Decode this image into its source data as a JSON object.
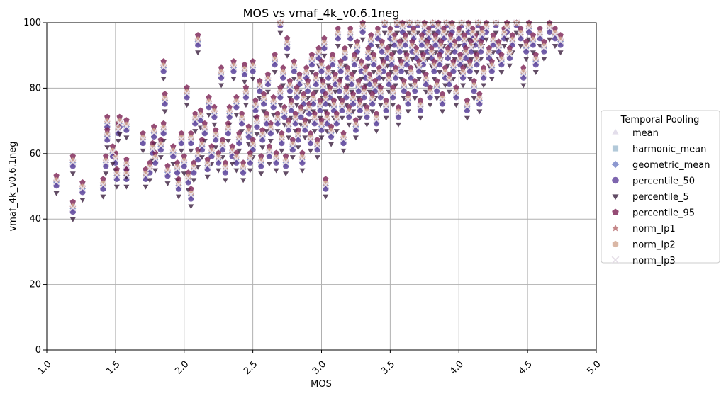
{
  "chart_data": {
    "type": "scatter",
    "title": "MOS vs vmaf_4k_v0.6.1neg",
    "xlabel": "MOS",
    "ylabel": "vmaf_4k_v0.6.1neg",
    "xlim": [
      1.0,
      5.0
    ],
    "ylim": [
      0,
      100
    ],
    "xticks": [
      "1.0",
      "1.5",
      "2.0",
      "2.5",
      "3.0",
      "3.5",
      "4.0",
      "4.5",
      "5.0"
    ],
    "yticks": [
      "0",
      "20",
      "40",
      "60",
      "80",
      "100"
    ],
    "grid": true,
    "legend": {
      "title": "Temporal Pooling",
      "placement": "center-right-outside"
    },
    "series": [
      {
        "name": "mean",
        "marker": "triangle-up",
        "color": "#dcd6e6"
      },
      {
        "name": "harmonic_mean",
        "marker": "square",
        "color": "#9fbcd0"
      },
      {
        "name": "geometric_mean",
        "marker": "diamond",
        "color": "#6f7ec4"
      },
      {
        "name": "percentile_50",
        "marker": "circle",
        "color": "#5c3f9a"
      },
      {
        "name": "percentile_5",
        "marker": "triangle-down",
        "color": "#3b1f3f"
      },
      {
        "name": "percentile_95",
        "marker": "pentagon",
        "color": "#7a1f52"
      },
      {
        "name": "norm_lp1",
        "marker": "star",
        "color": "#b5686a"
      },
      {
        "name": "norm_lp2",
        "marker": "hexagon",
        "color": "#d1a58f"
      },
      {
        "name": "norm_lp3",
        "marker": "x",
        "color": "#e6dfe8"
      }
    ],
    "points": [
      [
        1.07,
        51
      ],
      [
        1.19,
        57
      ],
      [
        1.19,
        43
      ],
      [
        1.26,
        49
      ],
      [
        1.41,
        50
      ],
      [
        1.43,
        57
      ],
      [
        1.44,
        69
      ],
      [
        1.44,
        65
      ],
      [
        1.48,
        60
      ],
      [
        1.5,
        58
      ],
      [
        1.51,
        53
      ],
      [
        1.52,
        67
      ],
      [
        1.53,
        69
      ],
      [
        1.58,
        56
      ],
      [
        1.58,
        53
      ],
      [
        1.58,
        68
      ],
      [
        1.7,
        64
      ],
      [
        1.72,
        53
      ],
      [
        1.75,
        55
      ],
      [
        1.77,
        61
      ],
      [
        1.78,
        66
      ],
      [
        1.79,
        58
      ],
      [
        1.83,
        62
      ],
      [
        1.85,
        67
      ],
      [
        1.85,
        86
      ],
      [
        1.86,
        76
      ],
      [
        1.88,
        54
      ],
      [
        1.92,
        60
      ],
      [
        1.95,
        55
      ],
      [
        1.96,
        50
      ],
      [
        1.98,
        64
      ],
      [
        2.0,
        57
      ],
      [
        2.02,
        78
      ],
      [
        2.03,
        52
      ],
      [
        2.05,
        47
      ],
      [
        2.05,
        64
      ],
      [
        2.07,
        55
      ],
      [
        2.08,
        70
      ],
      [
        2.1,
        94
      ],
      [
        2.1,
        59
      ],
      [
        2.12,
        71
      ],
      [
        2.13,
        62
      ],
      [
        2.15,
        67
      ],
      [
        2.17,
        56
      ],
      [
        2.18,
        75
      ],
      [
        2.2,
        60
      ],
      [
        2.22,
        72
      ],
      [
        2.23,
        65
      ],
      [
        2.25,
        58
      ],
      [
        2.27,
        84
      ],
      [
        2.28,
        62
      ],
      [
        2.3,
        55
      ],
      [
        2.32,
        67
      ],
      [
        2.33,
        72
      ],
      [
        2.35,
        60
      ],
      [
        2.36,
        86
      ],
      [
        2.38,
        75
      ],
      [
        2.38,
        58
      ],
      [
        2.4,
        64
      ],
      [
        2.42,
        70
      ],
      [
        2.43,
        55
      ],
      [
        2.44,
        85
      ],
      [
        2.45,
        78
      ],
      [
        2.47,
        66
      ],
      [
        2.48,
        58
      ],
      [
        2.5,
        86
      ],
      [
        2.5,
        62
      ],
      [
        2.52,
        74
      ],
      [
        2.53,
        69
      ],
      [
        2.55,
        80
      ],
      [
        2.56,
        57
      ],
      [
        2.57,
        65
      ],
      [
        2.58,
        76
      ],
      [
        2.6,
        70
      ],
      [
        2.61,
        82
      ],
      [
        2.62,
        60
      ],
      [
        2.63,
        67
      ],
      [
        2.65,
        75
      ],
      [
        2.66,
        88
      ],
      [
        2.67,
        58
      ],
      [
        2.68,
        70
      ],
      [
        2.7,
        100
      ],
      [
        2.7,
        78
      ],
      [
        2.71,
        64
      ],
      [
        2.72,
        84
      ],
      [
        2.73,
        72
      ],
      [
        2.74,
        57
      ],
      [
        2.75,
        93
      ],
      [
        2.76,
        68
      ],
      [
        2.77,
        80
      ],
      [
        2.78,
        74
      ],
      [
        2.79,
        62
      ],
      [
        2.8,
        86
      ],
      [
        2.81,
        70
      ],
      [
        2.82,
        78
      ],
      [
        2.83,
        65
      ],
      [
        2.84,
        82
      ],
      [
        2.85,
        72
      ],
      [
        2.86,
        58
      ],
      [
        2.87,
        76
      ],
      [
        2.88,
        68
      ],
      [
        2.89,
        84
      ],
      [
        2.9,
        80
      ],
      [
        2.91,
        73
      ],
      [
        2.92,
        64
      ],
      [
        2.93,
        88
      ],
      [
        2.94,
        76
      ],
      [
        2.95,
        70
      ],
      [
        2.96,
        82
      ],
      [
        2.97,
        62
      ],
      [
        2.98,
        90
      ],
      [
        2.99,
        74
      ],
      [
        3.0,
        86
      ],
      [
        3.0,
        68
      ],
      [
        3.01,
        80
      ],
      [
        3.02,
        93
      ],
      [
        3.03,
        50
      ],
      [
        3.03,
        76
      ],
      [
        3.04,
        70
      ],
      [
        3.05,
        84
      ],
      [
        3.06,
        78
      ],
      [
        3.07,
        66
      ],
      [
        3.08,
        88
      ],
      [
        3.09,
        74
      ],
      [
        3.1,
        82
      ],
      [
        3.11,
        70
      ],
      [
        3.12,
        96
      ],
      [
        3.13,
        80
      ],
      [
        3.14,
        86
      ],
      [
        3.15,
        74
      ],
      [
        3.16,
        64
      ],
      [
        3.17,
        90
      ],
      [
        3.18,
        78
      ],
      [
        3.19,
        84
      ],
      [
        3.2,
        72
      ],
      [
        3.21,
        96
      ],
      [
        3.22,
        82
      ],
      [
        3.23,
        76
      ],
      [
        3.24,
        88
      ],
      [
        3.25,
        68
      ],
      [
        3.26,
        92
      ],
      [
        3.27,
        80
      ],
      [
        3.28,
        74
      ],
      [
        3.29,
        86
      ],
      [
        3.3,
        98
      ],
      [
        3.31,
        78
      ],
      [
        3.32,
        84
      ],
      [
        3.33,
        72
      ],
      [
        3.34,
        90
      ],
      [
        3.35,
        82
      ],
      [
        3.36,
        94
      ],
      [
        3.37,
        76
      ],
      [
        3.38,
        88
      ],
      [
        3.39,
        80
      ],
      [
        3.4,
        70
      ],
      [
        3.41,
        96
      ],
      [
        3.42,
        84
      ],
      [
        3.43,
        78
      ],
      [
        3.44,
        92
      ],
      [
        3.45,
        86
      ],
      [
        3.46,
        100
      ],
      [
        3.47,
        74
      ],
      [
        3.48,
        90
      ],
      [
        3.49,
        82
      ],
      [
        3.5,
        96
      ],
      [
        3.51,
        88
      ],
      [
        3.52,
        78
      ],
      [
        3.53,
        94
      ],
      [
        3.54,
        84
      ],
      [
        3.55,
        100
      ],
      [
        3.56,
        72
      ],
      [
        3.57,
        92
      ],
      [
        3.58,
        86
      ],
      [
        3.59,
        98
      ],
      [
        3.6,
        80
      ],
      [
        3.61,
        94
      ],
      [
        3.62,
        88
      ],
      [
        3.63,
        76
      ],
      [
        3.64,
        100
      ],
      [
        3.65,
        84
      ],
      [
        3.66,
        92
      ],
      [
        3.67,
        96
      ],
      [
        3.68,
        80
      ],
      [
        3.69,
        90
      ],
      [
        3.7,
        100
      ],
      [
        3.71,
        86
      ],
      [
        3.72,
        74
      ],
      [
        3.73,
        94
      ],
      [
        3.74,
        88
      ],
      [
        3.75,
        98
      ],
      [
        3.76,
        82
      ],
      [
        3.77,
        92
      ],
      [
        3.78,
        96
      ],
      [
        3.79,
        78
      ],
      [
        3.8,
        90
      ],
      [
        3.81,
        100
      ],
      [
        3.82,
        86
      ],
      [
        3.83,
        94
      ],
      [
        3.84,
        80
      ],
      [
        3.85,
        98
      ],
      [
        3.86,
        88
      ],
      [
        3.87,
        92
      ],
      [
        3.88,
        76
      ],
      [
        3.89,
        96
      ],
      [
        3.9,
        84
      ],
      [
        3.91,
        100
      ],
      [
        3.92,
        90
      ],
      [
        3.93,
        82
      ],
      [
        3.94,
        94
      ],
      [
        3.95,
        98
      ],
      [
        3.96,
        86
      ],
      [
        3.97,
        92
      ],
      [
        3.98,
        78
      ],
      [
        4.0,
        96
      ],
      [
        4.01,
        88
      ],
      [
        4.02,
        100
      ],
      [
        4.03,
        84
      ],
      [
        4.04,
        94
      ],
      [
        4.05,
        90
      ],
      [
        4.06,
        74
      ],
      [
        4.07,
        98
      ],
      [
        4.08,
        86
      ],
      [
        4.09,
        92
      ],
      [
        4.1,
        96
      ],
      [
        4.11,
        80
      ],
      [
        4.12,
        94
      ],
      [
        4.13,
        88
      ],
      [
        4.14,
        100
      ],
      [
        4.15,
        76
      ],
      [
        4.16,
        92
      ],
      [
        4.17,
        96
      ],
      [
        4.18,
        84
      ],
      [
        4.2,
        98
      ],
      [
        4.22,
        90
      ],
      [
        4.24,
        86
      ],
      [
        4.25,
        94
      ],
      [
        4.27,
        100
      ],
      [
        4.29,
        92
      ],
      [
        4.31,
        88
      ],
      [
        4.33,
        96
      ],
      [
        4.35,
        98
      ],
      [
        4.37,
        90
      ],
      [
        4.39,
        94
      ],
      [
        4.42,
        100
      ],
      [
        4.45,
        96
      ],
      [
        4.47,
        84
      ],
      [
        4.49,
        92
      ],
      [
        4.51,
        98
      ],
      [
        4.54,
        94
      ],
      [
        4.56,
        88
      ],
      [
        4.59,
        96
      ],
      [
        4.62,
        92
      ],
      [
        4.66,
        98
      ],
      [
        4.7,
        96
      ],
      [
        4.74,
        94
      ]
    ]
  }
}
